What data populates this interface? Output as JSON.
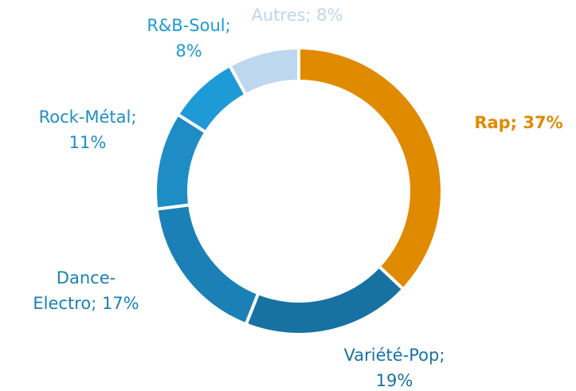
{
  "chart_data": {
    "type": "donut",
    "values": [
      37,
      19,
      17,
      11,
      8,
      8
    ],
    "value_labels": [
      [
        "Rap; 37%"
      ],
      [
        "Variété-Pop;",
        "19%"
      ],
      [
        "Dance-",
        "Electro; 17%"
      ],
      [
        "Rock-Métal;",
        "11%"
      ],
      [
        "R&B-Soul;",
        "8%"
      ],
      [
        "Autres; 8%"
      ]
    ],
    "colors": [
      "#e08a00",
      "#1872a1",
      "#1b80b6",
      "#1f8dc5",
      "#1e9ad6",
      "#bdd7ee"
    ]
  }
}
